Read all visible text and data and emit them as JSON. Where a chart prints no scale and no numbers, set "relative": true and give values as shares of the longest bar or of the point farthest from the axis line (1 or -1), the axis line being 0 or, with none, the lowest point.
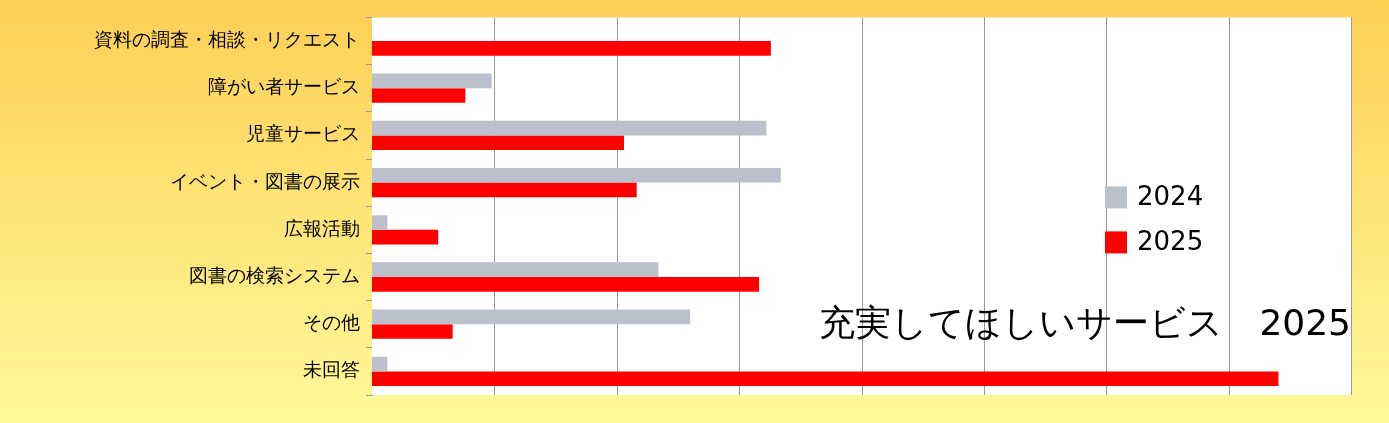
{
  "chart_data": {
    "type": "bar",
    "orientation": "horizontal",
    "relative": true,
    "title": "充実してほしいサービス　2025",
    "categories": [
      "資料の調査・相談・リクエスト",
      "障がい者サービス",
      "児童サービス",
      "イベント・図書の展示",
      "広報活動",
      "図書の検索システム",
      "その他",
      "未回答"
    ],
    "series": [
      {
        "name": "2024",
        "color": "#bbc0cc",
        "values": [
          null,
          0.132,
          0.435,
          0.451,
          0.017,
          0.316,
          0.351,
          0.017
        ]
      },
      {
        "name": "2025",
        "color": "#ff0000",
        "values": [
          0.44,
          0.103,
          0.278,
          0.292,
          0.073,
          0.427,
          0.089,
          1
        ]
      }
    ],
    "grid": "x",
    "legend": "right"
  }
}
